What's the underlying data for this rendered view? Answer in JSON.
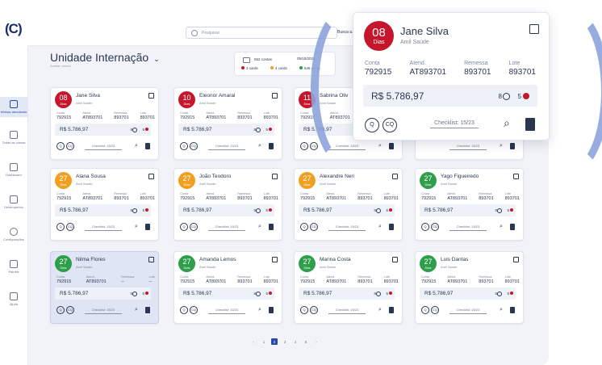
{
  "app": {
    "logo": "(C)"
  },
  "search": {
    "placeholder": "Pesquisar",
    "extra": "Busca a..."
  },
  "sidebar": {
    "items": [
      {
        "label": "Minhas atendiante"
      },
      {
        "label": "Todas as contas"
      },
      {
        "label": "Dashboard"
      },
      {
        "label": "Desempenho"
      },
      {
        "label": "Configurações"
      },
      {
        "label": "Painéis"
      },
      {
        "label": "Ajuda"
      }
    ]
  },
  "page": {
    "title": "Unidade Internação",
    "subtitle": "Auditar contas"
  },
  "counts": {
    "accounts": "652 contas",
    "range": "05/10/2024",
    "legend": [
      {
        "label": "3 cards",
        "color": "#c6162b"
      },
      {
        "label": "4 cards",
        "color": "#f0a020"
      },
      {
        "label": "645 cards",
        "color": "#2e9e4a"
      }
    ]
  },
  "colors": {
    "red": "#c6162b",
    "yellow": "#f0a020",
    "green": "#2e9e4a",
    "accent": "#2a4aa8"
  },
  "card_labels": {
    "conta": "Conta",
    "atend": "Atend.",
    "remessa": "Remessa",
    "lote": "Lote",
    "dias": "Dias",
    "q": "Q",
    "cq": "CQ",
    "paperclip": "paperclip-icon",
    "document": "document-icon"
  },
  "cards": [
    {
      "days": "08",
      "name": "Jane Silva",
      "insurer": "Amil Saúde",
      "conta": "792915",
      "atend": "AT893701",
      "remessa": "893701",
      "lote": "893701",
      "amount": "R$ 5.786,97",
      "n8": "8",
      "n5": "5",
      "checklist": "Checklist: 15/23",
      "color": "red"
    },
    {
      "days": "10",
      "name": "Eleonor Amaral",
      "insurer": "Amil Saúde",
      "conta": "792915",
      "atend": "AT893701",
      "remessa": "893701",
      "lote": "893701",
      "amount": "R$ 5.786,97",
      "n8": "8",
      "n5": "5",
      "checklist": "Checklist: 15/23",
      "color": "red"
    },
    {
      "days": "11",
      "name": "Sabrina Oliv",
      "insurer": "Amil Saúde",
      "conta": "792915",
      "atend": "AT893701",
      "remessa": "",
      "lote": "",
      "amount": "R$ 5.786,97",
      "n8": "8",
      "n5": "5",
      "checklist": "Checklist: 15/23",
      "color": "red"
    },
    {
      "days": "",
      "name": "",
      "insurer": "",
      "conta": "",
      "atend": "",
      "remessa": "",
      "lote": "",
      "amount": "",
      "n8": "",
      "n5": "",
      "checklist": "Checklist: 15/23",
      "color": "none"
    },
    {
      "days": "27",
      "name": "Alana Sousa",
      "insurer": "Amil Saúde",
      "conta": "792915",
      "atend": "AT893701",
      "remessa": "893701",
      "lote": "893701",
      "amount": "R$ 5.786,97",
      "n8": "8",
      "n5": "5",
      "checklist": "Checklist: 15/23",
      "color": "yellow"
    },
    {
      "days": "27",
      "name": "João Teodoro",
      "insurer": "Amil Saúde",
      "conta": "792915",
      "atend": "AT893701",
      "remessa": "893701",
      "lote": "893701",
      "amount": "R$ 5.786,97",
      "n8": "8",
      "n5": "5",
      "checklist": "Checklist: 15/23",
      "color": "yellow"
    },
    {
      "days": "27",
      "name": "Alexandre Neri",
      "insurer": "Amil Saúde",
      "conta": "792915",
      "atend": "AT893701",
      "remessa": "893701",
      "lote": "893701",
      "amount": "R$ 5.786,97",
      "n8": "8",
      "n5": "5",
      "checklist": "Checklist: 15/23",
      "color": "yellow"
    },
    {
      "days": "27",
      "name": "Yago Figueiredo",
      "insurer": "Amil Saúde",
      "conta": "792915",
      "atend": "AT893701",
      "remessa": "893701",
      "lote": "893701",
      "amount": "R$ 5.786,97",
      "n8": "8",
      "n5": "5",
      "checklist": "Checklist: 15/23",
      "color": "green"
    },
    {
      "days": "27",
      "name": "Nilma Flores",
      "insurer": "Amil Saúde",
      "conta": "792915",
      "atend": "AT893701",
      "remessa": "--",
      "lote": "--",
      "amount": "R$ 5.786,97",
      "n8": "8",
      "n5": "5",
      "checklist": "Checklist: 15/23",
      "color": "green"
    },
    {
      "days": "27",
      "name": "Amanda Lemos",
      "insurer": "Amil Saúde",
      "conta": "792915",
      "atend": "AT893701",
      "remessa": "893701",
      "lote": "893701",
      "amount": "R$ 5.786,97",
      "n8": "8",
      "n5": "5",
      "checklist": "Checklist: 15/23",
      "color": "green"
    },
    {
      "days": "27",
      "name": "Marina Costa",
      "insurer": "Amil Saúde",
      "conta": "792915",
      "atend": "AT893701",
      "remessa": "893701",
      "lote": "893701",
      "amount": "R$ 5.786,97",
      "n8": "8",
      "n5": "5",
      "checklist": "Checklist: 15/23",
      "color": "green"
    },
    {
      "days": "27",
      "name": "Luis Dantas",
      "insurer": "Amil Saúde",
      "conta": "792915",
      "atend": "AT893701",
      "remessa": "893701",
      "lote": "893701",
      "amount": "R$ 5.786,97",
      "n8": "8",
      "n5": "5",
      "checklist": "Checklist: 15/23",
      "color": "green"
    }
  ],
  "popup": {
    "days": "08",
    "name": "Jane Silva",
    "insurer": "Amil Saúde",
    "conta": "792915",
    "atend": "AT893701",
    "remessa": "893701",
    "lote": "893701",
    "amount": "R$ 5.786,97",
    "n8": "8",
    "n5": "5",
    "checklist": "Checklist: 15/23",
    "color": "red"
  },
  "pagination": {
    "prev": "‹",
    "pages": [
      "1",
      "2",
      "3",
      "4",
      "5"
    ],
    "current": "2",
    "next": "›"
  }
}
